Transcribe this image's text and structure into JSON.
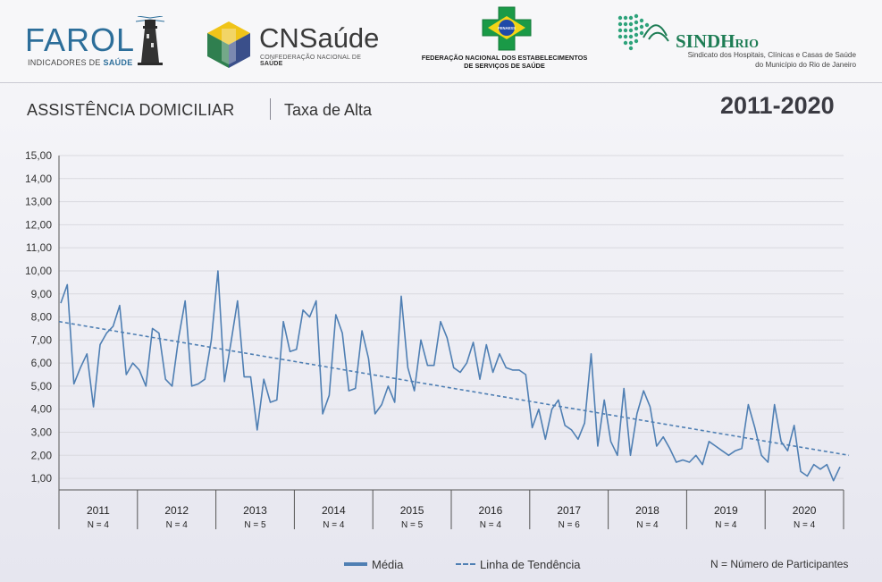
{
  "header": {
    "farol": {
      "word": "FAROL",
      "sub_prefix": "INDICADORES DE ",
      "sub_accent": "SAÚDE"
    },
    "cns": {
      "word": "CNSaúde",
      "sub_prefix": "CONFEDERAÇÃO NACIONAL DE ",
      "sub_accent": "SAÚDE"
    },
    "fenaess": {
      "badge": "FENAESS",
      "line1": "FEDERAÇÃO NACIONAL DOS ESTABELECIMENTOS",
      "line2": "DE SERVIÇOS DE SAÚDE"
    },
    "sindh": {
      "word": "SINDH",
      "word_small": "RIO",
      "line1": "Sindicato dos Hospitais, Clínicas e Casas de Saúde",
      "line2": "do Município do Rio de Janeiro"
    }
  },
  "title": {
    "main": "ASSISTÊNCIA DOMICILIAR",
    "sub": "Taxa de Alta",
    "period": "2011-2020"
  },
  "legend": {
    "media": "Média",
    "trend": "Linha de Tendência",
    "note": "N = Número de Participantes"
  },
  "colors": {
    "series": "#4f7fb3",
    "grid": "#d9d9df",
    "axis": "#555555"
  },
  "chart_data": {
    "type": "line",
    "title": "Taxa de Alta",
    "ylim": [
      1,
      15
    ],
    "yticks": [
      "1,00",
      "2,00",
      "3,00",
      "4,00",
      "5,00",
      "6,00",
      "7,00",
      "8,00",
      "9,00",
      "10,00",
      "11,00",
      "12,00",
      "13,00",
      "14,00",
      "15,00"
    ],
    "grid": "horizontal",
    "legend_position": "bottom",
    "years": [
      {
        "label": "2011",
        "n": "N = 4"
      },
      {
        "label": "2012",
        "n": "N = 4"
      },
      {
        "label": "2013",
        "n": "N = 5"
      },
      {
        "label": "2014",
        "n": "N = 4"
      },
      {
        "label": "2015",
        "n": "N = 5"
      },
      {
        "label": "2016",
        "n": "N = 4"
      },
      {
        "label": "2017",
        "n": "N = 6"
      },
      {
        "label": "2018",
        "n": "N = 4"
      },
      {
        "label": "2019",
        "n": "N = 4"
      },
      {
        "label": "2020",
        "n": "N = 4"
      }
    ],
    "series": [
      {
        "name": "Média",
        "style": "solid",
        "values": [
          8.6,
          9.4,
          5.1,
          5.8,
          6.4,
          4.1,
          6.8,
          7.3,
          7.6,
          8.5,
          5.5,
          6.0,
          5.7,
          5.0,
          7.5,
          7.3,
          5.3,
          5.0,
          7.1,
          8.7,
          5.0,
          5.1,
          5.3,
          7.0,
          10.0,
          5.2,
          6.9,
          8.7,
          5.4,
          5.4,
          3.1,
          5.3,
          4.3,
          4.4,
          7.8,
          6.5,
          6.6,
          8.3,
          8.0,
          8.7,
          3.8,
          4.6,
          8.1,
          7.3,
          4.8,
          4.9,
          7.4,
          6.2,
          3.8,
          4.2,
          5.0,
          4.3,
          8.9,
          5.8,
          4.8,
          7.0,
          5.9,
          5.9,
          7.8,
          7.1,
          5.8,
          5.6,
          6.0,
          6.9,
          5.3,
          6.8,
          5.6,
          6.4,
          5.8,
          5.7,
          5.7,
          5.5,
          3.2,
          4.0,
          2.7,
          4.0,
          4.4,
          3.3,
          3.1,
          2.7,
          3.4,
          6.4,
          2.4,
          4.4,
          2.6,
          2.0,
          4.9,
          2.0,
          3.8,
          4.8,
          4.1,
          2.4,
          2.8,
          2.3,
          1.7,
          1.8,
          1.7,
          2.0,
          1.6,
          2.6,
          2.4,
          2.2,
          2.0,
          2.2,
          2.3,
          4.2,
          3.2,
          2.0,
          1.7,
          4.2,
          2.6,
          2.2,
          3.3,
          1.3,
          1.1,
          1.6,
          1.4,
          1.6,
          0.9,
          1.5
        ]
      },
      {
        "name": "Linha de Tendência",
        "style": "dashed",
        "values": [
          7.8,
          2.0
        ]
      }
    ]
  }
}
